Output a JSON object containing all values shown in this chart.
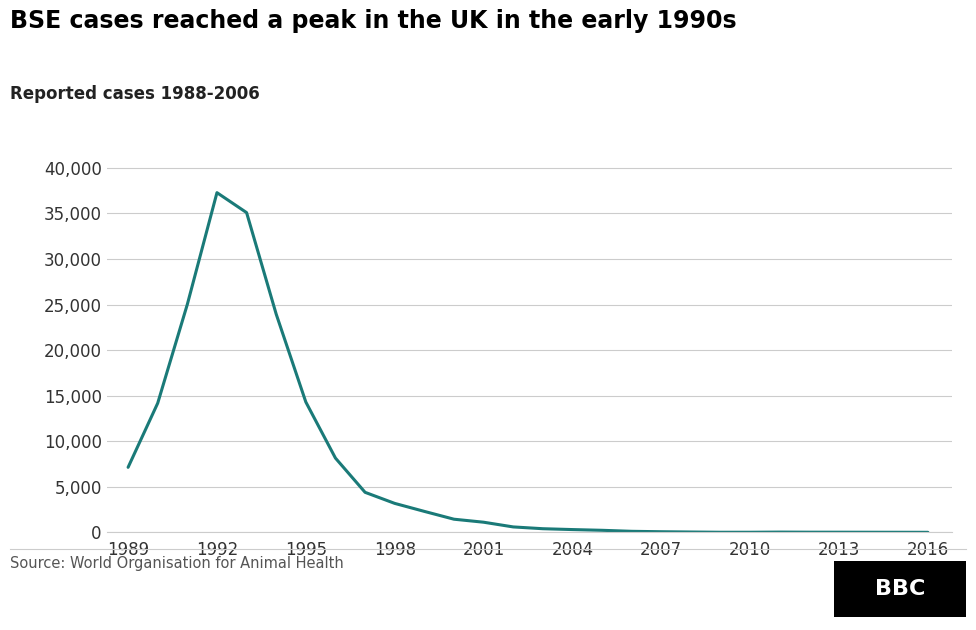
{
  "title": "BSE cases reached a peak in the UK in the early 1990s",
  "subtitle": "Reported cases 1988-2006",
  "source": "Source: World Organisation for Animal Health",
  "line_color": "#1a7a78",
  "background_color": "#ffffff",
  "years": [
    1989,
    1990,
    1991,
    1992,
    1993,
    1994,
    1995,
    1996,
    1997,
    1998,
    1999,
    2000,
    2001,
    2002,
    2003,
    2004,
    2005,
    2006,
    2007,
    2008,
    2009,
    2010,
    2011,
    2012,
    2013,
    2016
  ],
  "values": [
    7137,
    14181,
    25025,
    37280,
    35090,
    23945,
    14302,
    8149,
    4393,
    3179,
    2301,
    1443,
    1113,
    596,
    399,
    305,
    225,
    114,
    68,
    37,
    10,
    11,
    29,
    18,
    16,
    4
  ],
  "yticks": [
    0,
    5000,
    10000,
    15000,
    20000,
    25000,
    30000,
    35000,
    40000
  ],
  "xticks": [
    1989,
    1992,
    1995,
    1998,
    2001,
    2004,
    2007,
    2010,
    2013,
    2016
  ],
  "ylim": [
    0,
    41000
  ],
  "xlim": [
    1988.3,
    2016.8
  ],
  "line_width": 2.2,
  "title_fontsize": 17,
  "subtitle_fontsize": 12,
  "tick_fontsize": 12,
  "source_fontsize": 10.5,
  "grid_color": "#cccccc",
  "bbc_box_color": "#000000",
  "bbc_text_color": "#ffffff"
}
